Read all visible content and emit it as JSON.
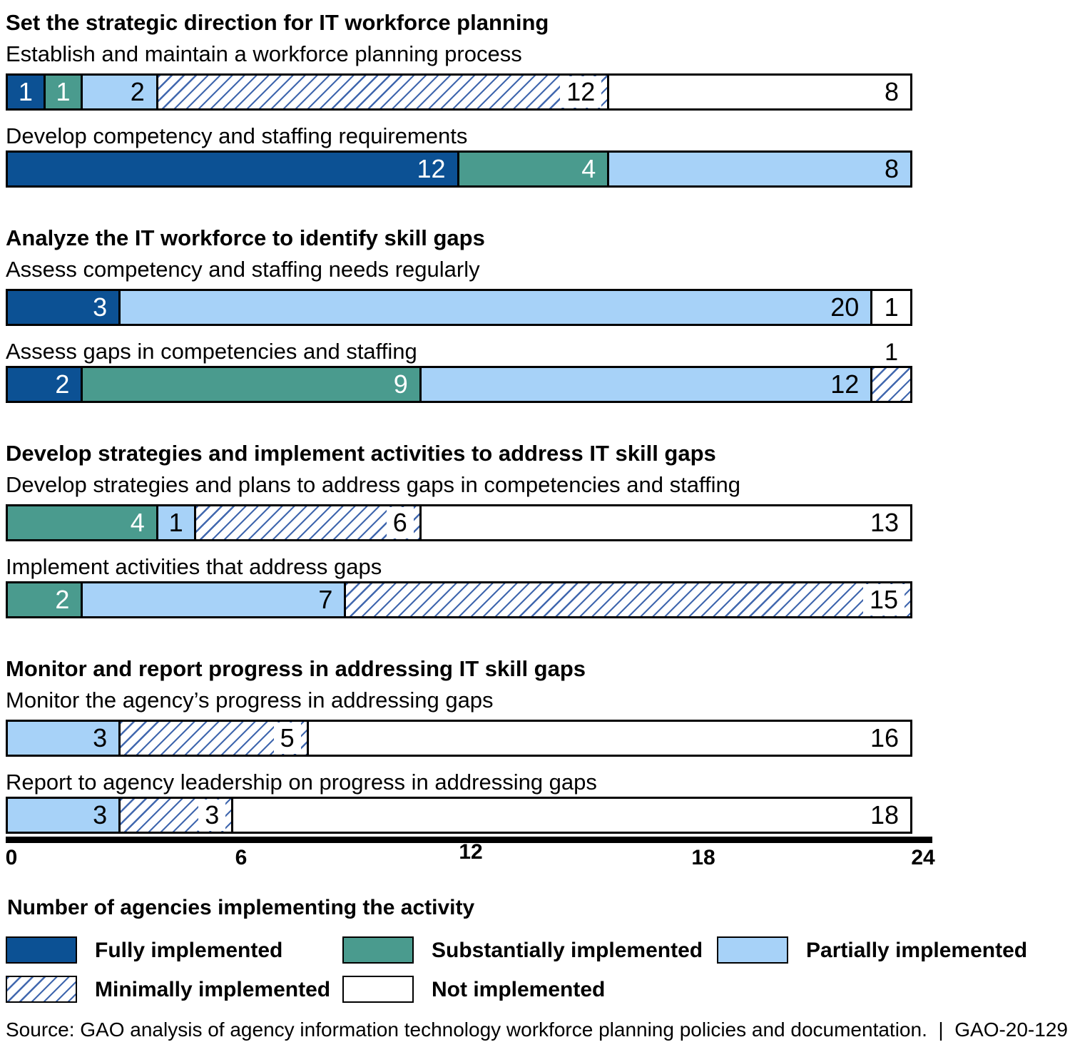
{
  "chart_data": {
    "type": "bar",
    "orientation": "horizontal",
    "stacked": true,
    "axis": {
      "min": 0,
      "max": 24,
      "ticks": [
        "0",
        "6",
        "12",
        "18",
        "24"
      ],
      "label": "Number of agencies implementing the activity",
      "grid": false
    },
    "sections": [
      {
        "title": "Set the strategic direction for IT workforce planning",
        "activities": [
          {
            "label": "Establish and maintain a workforce planning process",
            "segments": [
              {
                "status": "fully",
                "value": 1
              },
              {
                "status": "substantially",
                "value": 1
              },
              {
                "status": "partially",
                "value": 2
              },
              {
                "status": "minimally",
                "value": 12
              },
              {
                "status": "not",
                "value": 8
              }
            ]
          },
          {
            "label": "Develop competency and staffing requirements",
            "segments": [
              {
                "status": "fully",
                "value": 12
              },
              {
                "status": "substantially",
                "value": 4
              },
              {
                "status": "partially",
                "value": 8
              }
            ]
          }
        ]
      },
      {
        "title": "Analyze the IT workforce to identify skill gaps",
        "activities": [
          {
            "label": "Assess competency and staffing needs regularly",
            "segments": [
              {
                "status": "fully",
                "value": 3
              },
              {
                "status": "partially",
                "value": 20
              },
              {
                "status": "not",
                "value": 1
              }
            ]
          },
          {
            "label": "Assess gaps in competencies and staffing",
            "segments": [
              {
                "status": "fully",
                "value": 2
              },
              {
                "status": "substantially",
                "value": 9
              },
              {
                "status": "partially",
                "value": 12
              },
              {
                "status": "minimally",
                "value": 1,
                "label_position": "above"
              }
            ]
          }
        ]
      },
      {
        "title": "Develop strategies and implement activities to address IT skill gaps",
        "activities": [
          {
            "label": "Develop strategies and plans to address gaps in competencies and staffing",
            "segments": [
              {
                "status": "substantially",
                "value": 4
              },
              {
                "status": "partially",
                "value": 1
              },
              {
                "status": "minimally",
                "value": 6
              },
              {
                "status": "not",
                "value": 13
              }
            ]
          },
          {
            "label": "Implement activities that address gaps",
            "segments": [
              {
                "status": "substantially",
                "value": 2
              },
              {
                "status": "partially",
                "value": 7
              },
              {
                "status": "minimally",
                "value": 15
              }
            ]
          }
        ]
      },
      {
        "title": "Monitor and report progress in addressing IT skill gaps",
        "activities": [
          {
            "label": "Monitor the agency’s progress in addressing gaps",
            "segments": [
              {
                "status": "partially",
                "value": 3
              },
              {
                "status": "minimally",
                "value": 5
              },
              {
                "status": "not",
                "value": 16
              }
            ]
          },
          {
            "label": "Report to agency leadership on progress in addressing gaps",
            "segments": [
              {
                "status": "partially",
                "value": 3
              },
              {
                "status": "minimally",
                "value": 3
              },
              {
                "status": "not",
                "value": 18
              }
            ]
          }
        ]
      }
    ],
    "legend": [
      {
        "status": "fully",
        "label": "Fully implemented"
      },
      {
        "status": "substantially",
        "label": "Substantially implemented"
      },
      {
        "status": "partially",
        "label": "Partially implemented"
      },
      {
        "status": "minimally",
        "label": "Minimally implemented"
      },
      {
        "status": "not",
        "label": "Not implemented"
      }
    ],
    "colors": {
      "fully": "#0C5194",
      "substantially": "#4A9B8E",
      "partially": "#A7D2F8",
      "minimally_hatch_line": "#4067AE",
      "not": "#FFFFFF",
      "border": "#000000"
    }
  },
  "source_line": "Source: GAO analysis of agency information technology workforce planning policies and documentation.  |  GAO-20-129"
}
